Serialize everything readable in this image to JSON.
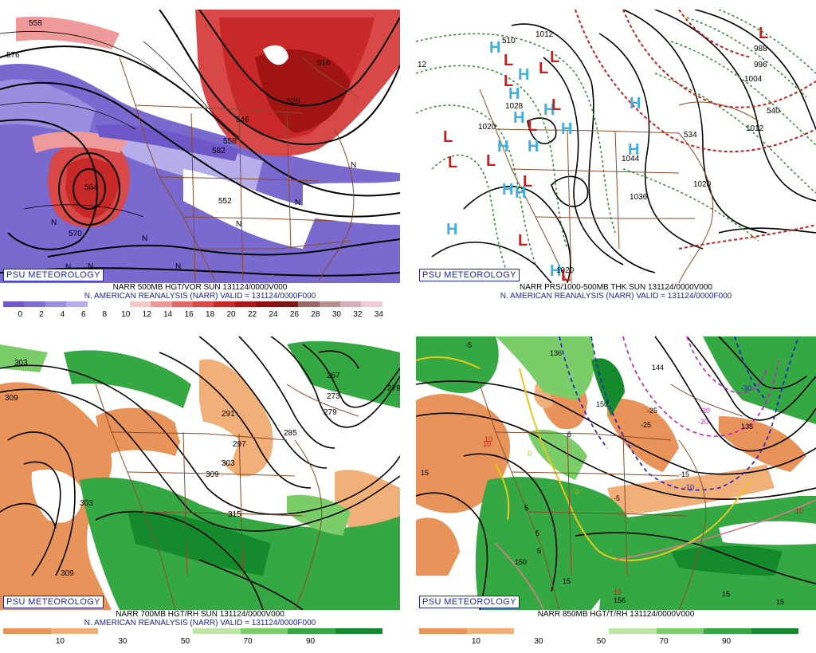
{
  "panels": {
    "p1": {
      "badge": "PSU METEOROLOGY",
      "title": "NARR 500MB HGT/VOR SUN 131124/0000V000",
      "subtitle": "N. AMERICAN REANALYSIS (NARR) VALID = 131124/0000F000",
      "contour_labels": [
        "558",
        "576",
        "516",
        "528",
        "582",
        "552",
        "570",
        "564",
        "558",
        "546"
      ],
      "colorbar": {
        "colors": [
          "#6e58c8",
          "#8070d4",
          "#9a8ee0",
          "#b6aeea",
          "#ffffff",
          "#ffffff",
          "#f7c8c8",
          "#ee9a9a",
          "#e06868",
          "#d84848",
          "#c82828",
          "#b01818",
          "#901010",
          "#7a1818",
          "#986868",
          "#b89090",
          "#d4aeb8",
          "#f0c8d8"
        ],
        "ticks": [
          "0",
          "2",
          "4",
          "6",
          "8",
          "10",
          "12",
          "14",
          "16",
          "18",
          "20",
          "22",
          "24",
          "26",
          "28",
          "30",
          "32",
          "34"
        ]
      }
    },
    "p2": {
      "badge": "PSU METEOROLOGY",
      "title": "NARR PRS/1000-500MB THK SUN 131124/0000V000",
      "subtitle": "N. AMERICAN REANALYSIS (NARR) VALID = 131124/0000F000",
      "contour_labels": [
        "1012",
        "12",
        "1028",
        "1020",
        "1036",
        "1044",
        "1020",
        "1012",
        "988",
        "996",
        "1004",
        "1012",
        "1020",
        "510",
        "534",
        "540"
      ],
      "highs_label": "H",
      "lows_label": "L"
    },
    "p3": {
      "badge": "PSU METEOROLOGY",
      "title": "NARR 700MB HGT/RH SUN 131124/0000V000",
      "subtitle": "N. AMERICAN REANALYSIS (NARR) VALID = 131124/0000F000",
      "contour_labels": [
        "303",
        "309",
        "303",
        "309",
        "315",
        "291",
        "297",
        "303",
        "309",
        "285",
        "279",
        "273",
        "267",
        "279"
      ],
      "colorbar": {
        "colors": [
          "#e8935a",
          "#f1b07a",
          "#ffffff",
          "#ffffff",
          "#bfe4a8",
          "#7acd68",
          "#35a844",
          "#148a2c"
        ],
        "ticks": [
          "10",
          "30",
          "50",
          "70",
          "90"
        ]
      }
    },
    "p4": {
      "badge": "PSU METEOROLOGY",
      "title": "NARR 850MB HGT/T/RH 131124/0000V000",
      "subtitle": "",
      "contour_labels": [
        "136",
        "144",
        "150",
        "-5",
        "10",
        "15",
        "5",
        "0",
        "5",
        "5",
        "5",
        "-5",
        "-10",
        "-15",
        "-20",
        "-25",
        "0",
        "10",
        "15",
        "15",
        "15",
        "10",
        "138",
        "-20",
        "-25",
        "-30",
        "150",
        "156",
        "10"
      ],
      "colorbar": {
        "colors": [
          "#e8935a",
          "#f1b07a",
          "#ffffff",
          "#ffffff",
          "#bfe4a8",
          "#7acd68",
          "#35a844",
          "#148a2c"
        ],
        "ticks": [
          "10",
          "30",
          "50",
          "70",
          "90"
        ]
      }
    }
  }
}
